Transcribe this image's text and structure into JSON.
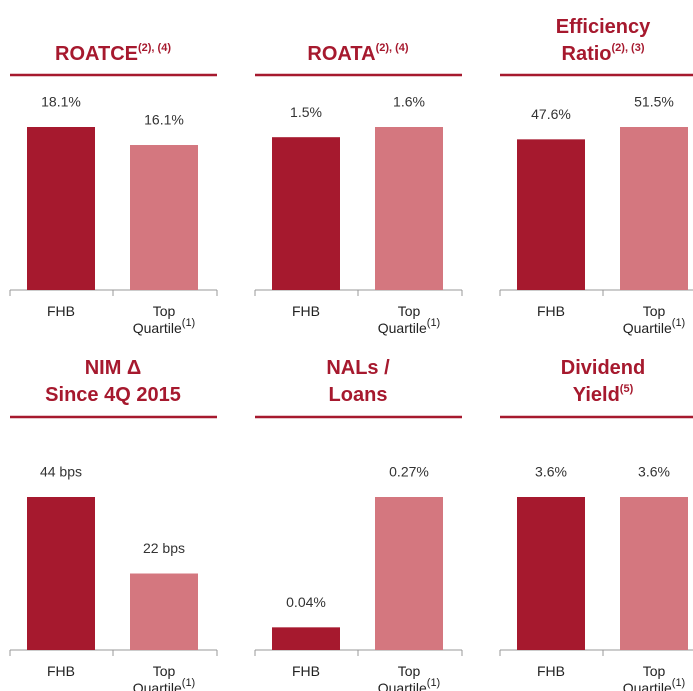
{
  "chart_data": [
    {
      "type": "bar",
      "title": [
        "ROATCE"
      ],
      "title_note": "(2), (4)",
      "categories": [
        [
          "FHB"
        ],
        [
          "Top",
          "Quartile"
        ]
      ],
      "category_note": "(1)",
      "values": [
        18.1,
        16.1
      ],
      "value_labels": [
        "18.1%",
        "16.1%"
      ],
      "colors": [
        "#a6192e",
        "#d4777f"
      ]
    },
    {
      "type": "bar",
      "title": [
        "ROATA"
      ],
      "title_note": "(2), (4)",
      "categories": [
        [
          "FHB"
        ],
        [
          "Top",
          "Quartile"
        ]
      ],
      "category_note": "(1)",
      "values": [
        1.5,
        1.6
      ],
      "value_labels": [
        "1.5%",
        "1.6%"
      ],
      "colors": [
        "#a6192e",
        "#d4777f"
      ]
    },
    {
      "type": "bar",
      "title": [
        "Efficiency",
        "Ratio"
      ],
      "title_note": "(2), (3)",
      "categories": [
        [
          "FHB"
        ],
        [
          "Top",
          "Quartile"
        ]
      ],
      "category_note": "(1)",
      "values": [
        47.6,
        51.5
      ],
      "value_labels": [
        "47.6%",
        "51.5%"
      ],
      "colors": [
        "#a6192e",
        "#d4777f"
      ]
    },
    {
      "type": "bar",
      "title": [
        "NIM Δ",
        "Since 4Q 2015"
      ],
      "categories": [
        [
          "FHB"
        ],
        [
          "Top",
          "Quartile"
        ]
      ],
      "category_note": "(1)",
      "values": [
        44,
        22
      ],
      "value_labels": [
        "44 bps",
        "22 bps"
      ],
      "colors": [
        "#a6192e",
        "#d4777f"
      ]
    },
    {
      "type": "bar",
      "title": [
        "NALs /",
        "Loans"
      ],
      "categories": [
        [
          "FHB"
        ],
        [
          "Top",
          "Quartile"
        ]
      ],
      "category_note": "(1)",
      "values": [
        0.04,
        0.27
      ],
      "value_labels": [
        "0.04%",
        "0.27%"
      ],
      "colors": [
        "#a6192e",
        "#d4777f"
      ]
    },
    {
      "type": "bar",
      "title": [
        "Dividend",
        "Yield"
      ],
      "title_note": "(5)",
      "categories": [
        [
          "FHB"
        ],
        [
          "Top",
          "Quartile"
        ]
      ],
      "category_note": "(1)",
      "values": [
        3.6,
        3.6
      ],
      "value_labels": [
        "3.6%",
        "3.6%"
      ],
      "colors": [
        "#a6192e",
        "#d4777f"
      ]
    }
  ]
}
